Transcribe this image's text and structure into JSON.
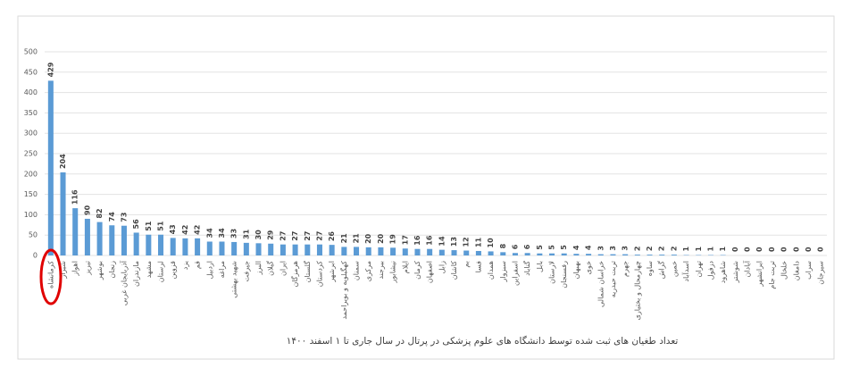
{
  "chart_data": {
    "type": "bar",
    "title": "تعداد طغیان های ثبت شده توسط دانشگاه های علوم پزشکی در پرتال در  سال جاری تا ۱ اسفند ۱۴۰۰",
    "categories": [
      "کرمانشاه",
      "شیراز",
      "اهواز",
      "تبریز",
      "بوشهر",
      "زنجان",
      "آذربایجان غربی",
      "مازندران",
      "مشهد",
      "لرستان",
      "قزوین",
      "یزد",
      "قم",
      "اردبیل",
      "مراغه",
      "شهید بهشتی",
      "جیرفت",
      "البرز",
      "گیلان",
      "ایران",
      "هرمزگان",
      "گلستان",
      "کردستان",
      "ابرشهر",
      "کهگیلویه و بویراحمد",
      "سمنان",
      "مرکزی",
      "بیرجند",
      "نیشابور",
      "ایلام",
      "کرمان",
      "اصفهان",
      "زابل",
      "کاشان",
      "بم",
      "فسا",
      "همدان",
      "سبزوار",
      "اسفراین",
      "گناباد",
      "بابل",
      "لارستان",
      "رفسنجان",
      "بهبهان",
      "خوی",
      "خراسان شمالی",
      "تربت حیدریه",
      "جهرم",
      "چهارمحال و بختیاری",
      "ساوه",
      "گراش",
      "خمین",
      "اسدآباد",
      "تهران",
      "دزفول",
      "شاهرود",
      "شوشتر",
      "آبادان",
      "ایرانشهر",
      "تربت جام",
      "خلخال",
      "دامغان",
      "سراب",
      "سیرجان"
    ],
    "values": [
      429,
      204,
      116,
      90,
      82,
      74,
      73,
      56,
      51,
      51,
      43,
      42,
      42,
      34,
      34,
      33,
      31,
      30,
      29,
      27,
      27,
      27,
      27,
      26,
      21,
      21,
      20,
      20,
      19,
      17,
      16,
      16,
      14,
      13,
      12,
      11,
      10,
      8,
      6,
      6,
      5,
      5,
      5,
      4,
      4,
      3,
      3,
      3,
      2,
      2,
      2,
      2,
      1,
      1,
      1,
      1,
      0,
      0,
      0,
      0,
      0,
      0,
      0,
      0
    ],
    "color": "#5b9bd5",
    "ylim": [
      0,
      500
    ],
    "yticks": [
      0,
      50,
      100,
      150,
      200,
      250,
      300,
      350,
      400,
      450,
      500
    ],
    "grid": true
  }
}
